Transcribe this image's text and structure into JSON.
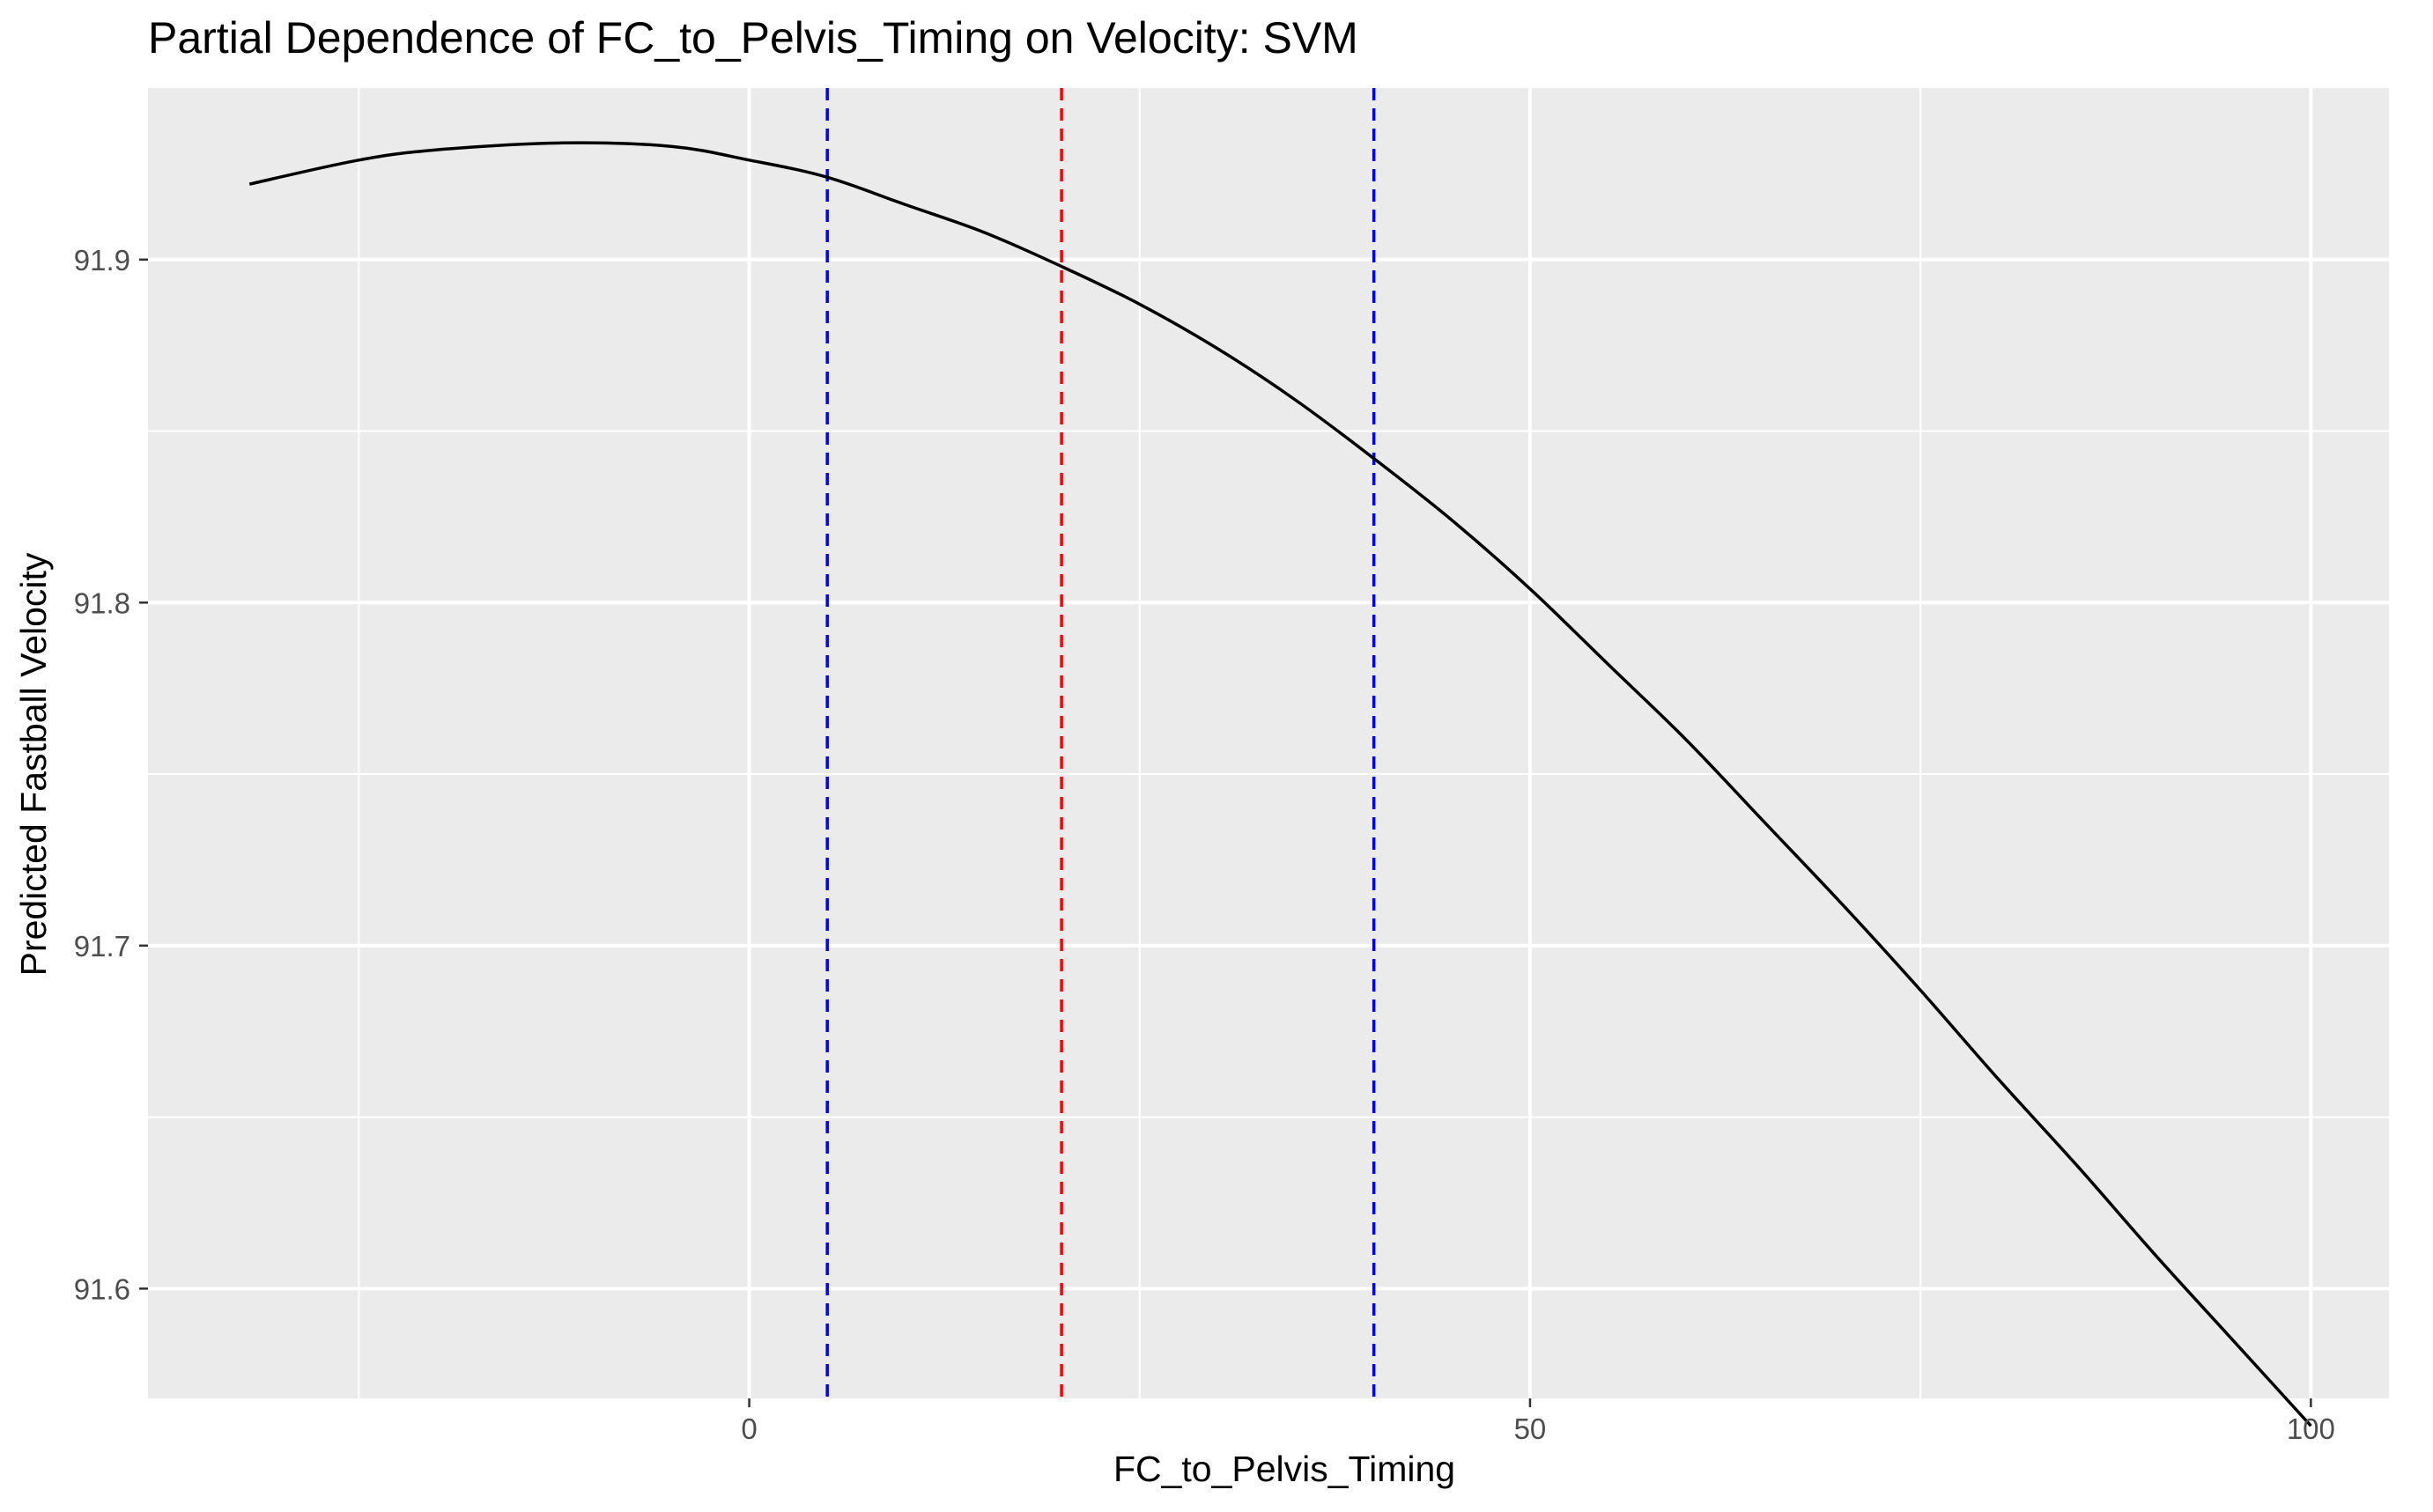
{
  "chart_data": {
    "type": "line",
    "title": "Partial Dependence of FC_to_Pelvis_Timing on Velocity: SVM",
    "xlabel": "FC_to_Pelvis_Timing",
    "ylabel": "Predicted Fastball Velocity",
    "xlim": [
      -38.5,
      105
    ],
    "ylim": [
      91.568,
      91.95
    ],
    "x_ticks": [
      0,
      50,
      100
    ],
    "x_tick_labels": [
      "0",
      "50",
      "100"
    ],
    "x_minor_ticks": [
      -25,
      25,
      75
    ],
    "y_ticks": [
      91.6,
      91.7,
      91.8,
      91.9
    ],
    "y_tick_labels": [
      "91.6",
      "91.7",
      "91.8",
      "91.9"
    ],
    "y_minor_ticks": [
      91.65,
      91.75,
      91.85
    ],
    "grid": true,
    "legend": "none",
    "background_color": "#ebebeb",
    "grid_color": "#ffffff",
    "series": [
      {
        "color": "#000000",
        "x": [
          -32,
          -25,
          -20,
          -12,
          -5,
          0,
          5,
          10,
          15,
          20,
          25,
          30,
          35,
          40,
          45,
          50,
          55,
          60,
          65,
          70,
          75,
          80,
          85,
          90,
          95,
          100
        ],
        "y": [
          91.922,
          91.929,
          91.932,
          91.934,
          91.933,
          91.929,
          91.924,
          91.916,
          91.908,
          91.898,
          91.887,
          91.874,
          91.859,
          91.842,
          91.824,
          91.804,
          91.782,
          91.76,
          91.736,
          91.712,
          91.687,
          91.661,
          91.636,
          91.61,
          91.585,
          91.56
        ]
      }
    ],
    "reference_lines": [
      {
        "x": 5,
        "color": "#0000ff",
        "style": "dashed"
      },
      {
        "x": 20,
        "color": "#ff0000",
        "style": "dashed"
      },
      {
        "x": 40,
        "color": "#0000ff",
        "style": "dashed"
      }
    ]
  }
}
